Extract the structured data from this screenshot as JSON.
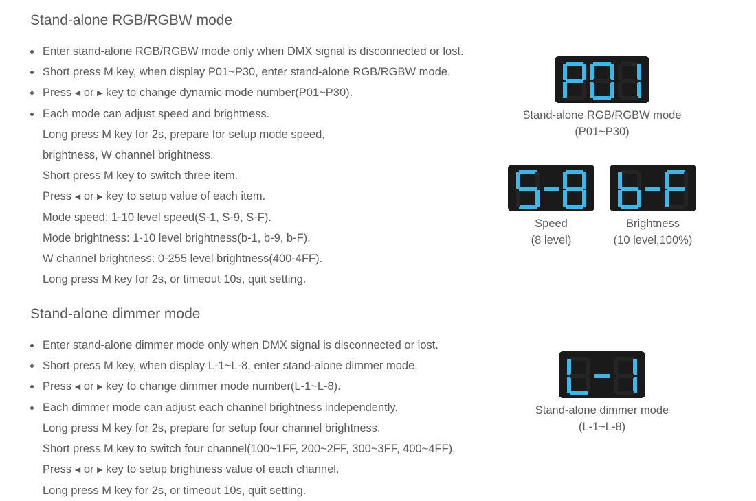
{
  "colors": {
    "text": "#5b5b5b",
    "display_bg": "#1a1a1a",
    "segment_on": "#3bb8e8",
    "page_bg": "#ffffff"
  },
  "font": {
    "family": "Futura / Century Gothic",
    "heading_size_pt": 16,
    "body_size_pt": 12.5,
    "weight": 300
  },
  "section1": {
    "title": "Stand-alone RGB/RGBW mode",
    "bullets": [
      "Enter stand-alone RGB/RGBW mode only when DMX signal is disconnected or lost.",
      "Short press M key, when display P01~P30, enter stand-alone RGB/RGBW mode.",
      "Press ◀ or ▶ key to change dynamic mode number(P01~P30).",
      "Each mode can adjust speed and brightness."
    ],
    "sublines": [
      "Long press M key for 2s, prepare for setup mode speed,",
      "brightness, W channel brightness.",
      "Short press M key to switch three item.",
      "Press ◀ or ▶ key to setup value of each item.",
      "Mode speed:  1-10 level speed(S-1, S-9, S-F).",
      "Mode brightness: 1-10 level brightness(b-1, b-9, b-F).",
      "W channel brightness: 0-255 level brightness(400-4FF).",
      "Long press M key for 2s, or timeout 10s, quit setting."
    ]
  },
  "section2": {
    "title": "Stand-alone dimmer mode",
    "bullets": [
      "Enter stand-alone dimmer mode only when DMX signal is disconnected or lost.",
      "Short press M key, when display L-1~L-8, enter stand-alone dimmer mode.",
      "Press ◀ or ▶ key to change dimmer mode number(L-1~L-8).",
      "Each dimmer mode can adjust each channel brightness independently."
    ],
    "sublines": [
      "Long press M key for 2s, prepare for setup four channel brightness.",
      "Short press M key to switch four channel(100~1FF, 200~2FF, 300~3FF, 400~4FF).",
      "Press ◀ or ▶ key to setup brightness value of each channel.",
      "Long press M key for 2s, or timeout 10s, quit setting."
    ]
  },
  "displays": {
    "d1": {
      "text": "P01",
      "caption_l1": "Stand-alone RGB/RGBW mode",
      "caption_l2": "(P01~P30)"
    },
    "d2": {
      "text": "S-8",
      "caption_l1": "Speed",
      "caption_l2": "(8 level)"
    },
    "d3": {
      "text": "b-F",
      "caption_l1": "Brightness",
      "caption_l2": "(10 level,100%)"
    },
    "d4": {
      "text": "L-1",
      "caption_l1": "Stand-alone dimmer mode",
      "caption_l2": "(L-1~L-8)"
    }
  }
}
